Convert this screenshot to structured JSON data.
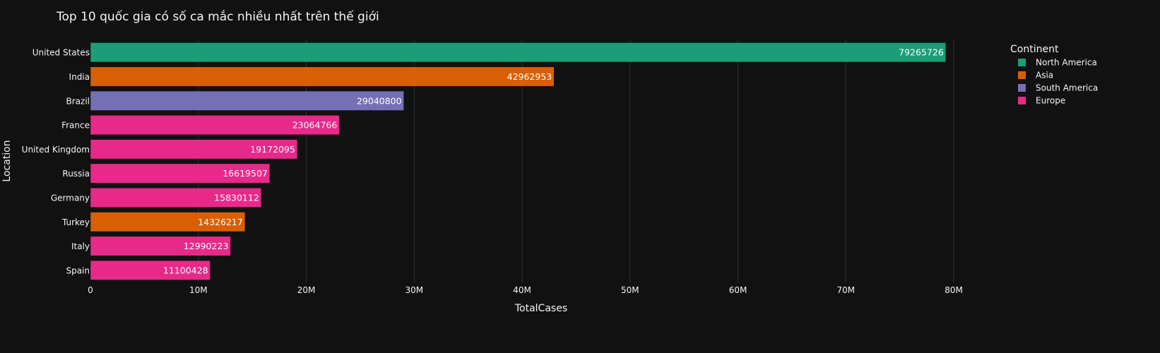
{
  "chart_data": {
    "type": "bar",
    "orientation": "horizontal",
    "title": "Top 10 quốc gia có số ca mắc nhiều nhất trên thế giới",
    "xlabel": "TotalCases",
    "ylabel": "Location",
    "xlim": [
      0,
      86000000
    ],
    "x_ticks": [
      {
        "value": 0,
        "label": "0"
      },
      {
        "value": 10000000,
        "label": "10M"
      },
      {
        "value": 20000000,
        "label": "20M"
      },
      {
        "value": 30000000,
        "label": "30M"
      },
      {
        "value": 40000000,
        "label": "40M"
      },
      {
        "value": 50000000,
        "label": "50M"
      },
      {
        "value": 60000000,
        "label": "60M"
      },
      {
        "value": 70000000,
        "label": "70M"
      },
      {
        "value": 80000000,
        "label": "80M"
      }
    ],
    "grid": true,
    "legend": {
      "title": "Continent",
      "placement": "top-right",
      "entries": [
        {
          "name": "North America",
          "color": "#1b9e77"
        },
        {
          "name": "Asia",
          "color": "#d95f02"
        },
        {
          "name": "South America",
          "color": "#7570b3"
        },
        {
          "name": "Europe",
          "color": "#e7298a"
        }
      ]
    },
    "bars": [
      {
        "location": "United States",
        "value": 79265726,
        "label": "79265726",
        "continent": "North America"
      },
      {
        "location": "India",
        "value": 42962953,
        "label": "42962953",
        "continent": "Asia"
      },
      {
        "location": "Brazil",
        "value": 29040800,
        "label": "29040800",
        "continent": "South America"
      },
      {
        "location": "France",
        "value": 23064766,
        "label": "23064766",
        "continent": "Europe"
      },
      {
        "location": "United Kingdom",
        "value": 19172095,
        "label": "19172095",
        "continent": "Europe"
      },
      {
        "location": "Russia",
        "value": 16619507,
        "label": "16619507",
        "continent": "Europe"
      },
      {
        "location": "Germany",
        "value": 15830112,
        "label": "15830112",
        "continent": "Europe"
      },
      {
        "location": "Turkey",
        "value": 14326217,
        "label": "14326217",
        "continent": "Asia"
      },
      {
        "location": "Italy",
        "value": 12990223,
        "label": "12990223",
        "continent": "Europe"
      },
      {
        "location": "Spain",
        "value": 11100428,
        "label": "11100428",
        "continent": "Europe"
      }
    ]
  },
  "colors": {
    "background": "#111111",
    "text": "#f2f5fa",
    "grid": "#283442"
  }
}
